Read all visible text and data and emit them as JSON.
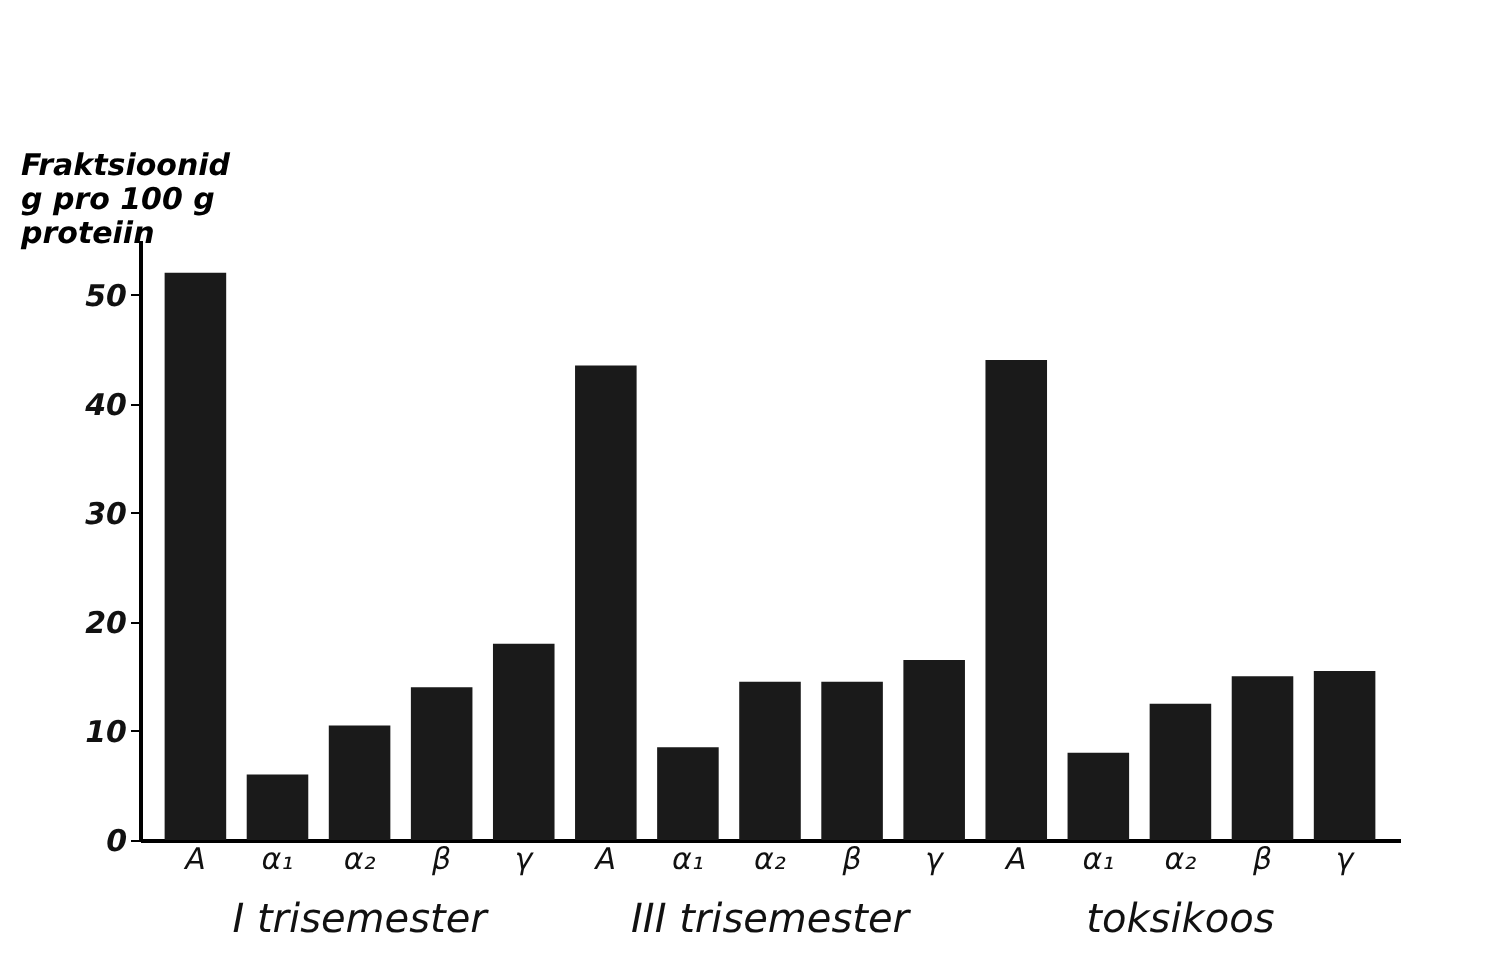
{
  "chart_data": {
    "type": "bar",
    "ylabel": "Fraktsioonid\ng pro 100 g\nproteiin",
    "categories": [
      "A",
      "α₁",
      "α₂",
      "β",
      "γ",
      "A",
      "α₁",
      "α₂",
      "β",
      "γ",
      "A",
      "α₁",
      "α₂",
      "β",
      "γ"
    ],
    "values": [
      52,
      6,
      10.5,
      14,
      18,
      43.5,
      8.5,
      14.5,
      14.5,
      16.5,
      44,
      8,
      12.5,
      15,
      15.5
    ],
    "color": "#1a1a1a",
    "ylim": [
      0,
      55
    ],
    "yticks": [
      0,
      10,
      20,
      30,
      40,
      50
    ],
    "grid": false,
    "annotations": [
      "I  trisemester",
      "III  trisemester",
      "toksikoos"
    ]
  }
}
